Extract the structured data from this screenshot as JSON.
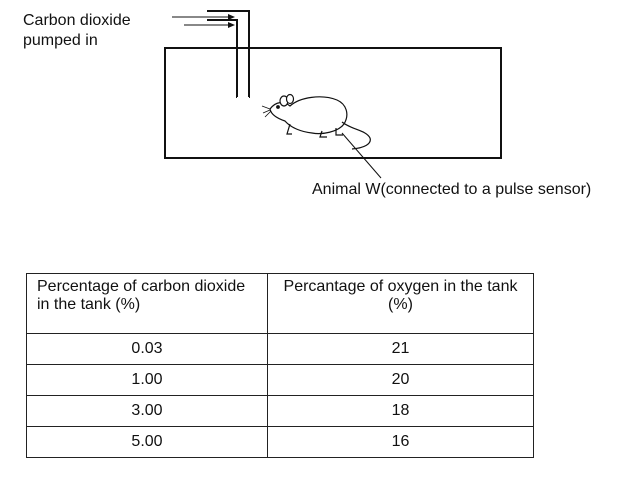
{
  "diagram": {
    "gas_label_line1": "Carbon dioxide",
    "gas_label_line2": "pumped in",
    "animal_label": "Animal W(connected to a pulse sensor)"
  },
  "table": {
    "headers": [
      "Percentage of  carbon dioxide in the tank (%)",
      "Percantage of oxygen in  the tank (%)"
    ],
    "rows": [
      [
        "0.03",
        "21"
      ],
      [
        "1.00",
        "20"
      ],
      [
        "3.00",
        "18"
      ],
      [
        "5.00",
        "16"
      ]
    ]
  }
}
